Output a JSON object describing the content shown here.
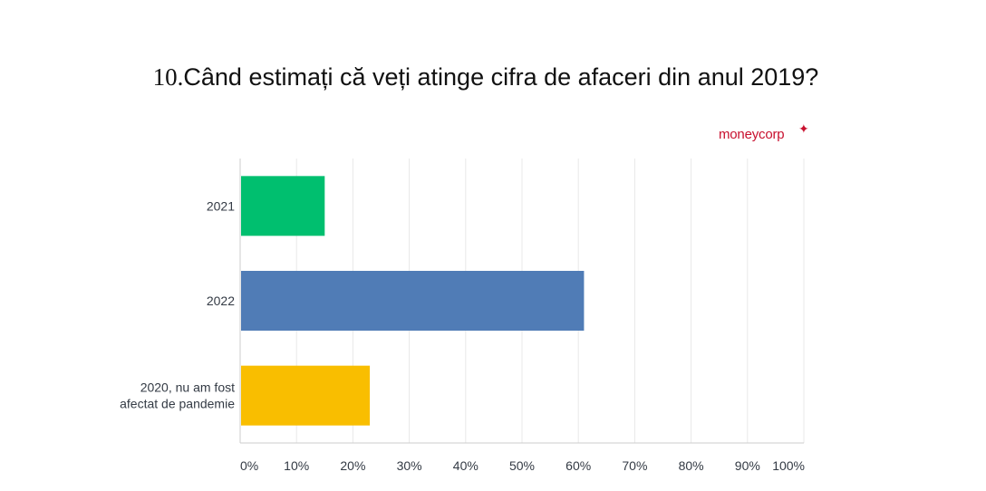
{
  "title_number": "10.",
  "title_text": "Când estimați că veți atinge cifra de afaceri din anul 2019?",
  "logo_text": "moneycorp",
  "logo_star": "✦",
  "colors": {
    "logo": "#c8102e",
    "grid": "#e8e8e8",
    "axis": "#cccccc"
  },
  "chart_data": {
    "type": "bar",
    "orientation": "horizontal",
    "categories": [
      [
        "2021"
      ],
      [
        "2022"
      ],
      [
        "2020, nu am fost",
        "afectat de pandemie"
      ]
    ],
    "values": [
      15,
      61,
      23
    ],
    "colors": [
      "#00bf6f",
      "#507cb6",
      "#f9be00"
    ],
    "xlim": [
      0,
      100
    ],
    "xticks": [
      "0%",
      "10%",
      "20%",
      "30%",
      "40%",
      "50%",
      "60%",
      "70%",
      "80%",
      "90%",
      "100%"
    ],
    "grid": true
  }
}
